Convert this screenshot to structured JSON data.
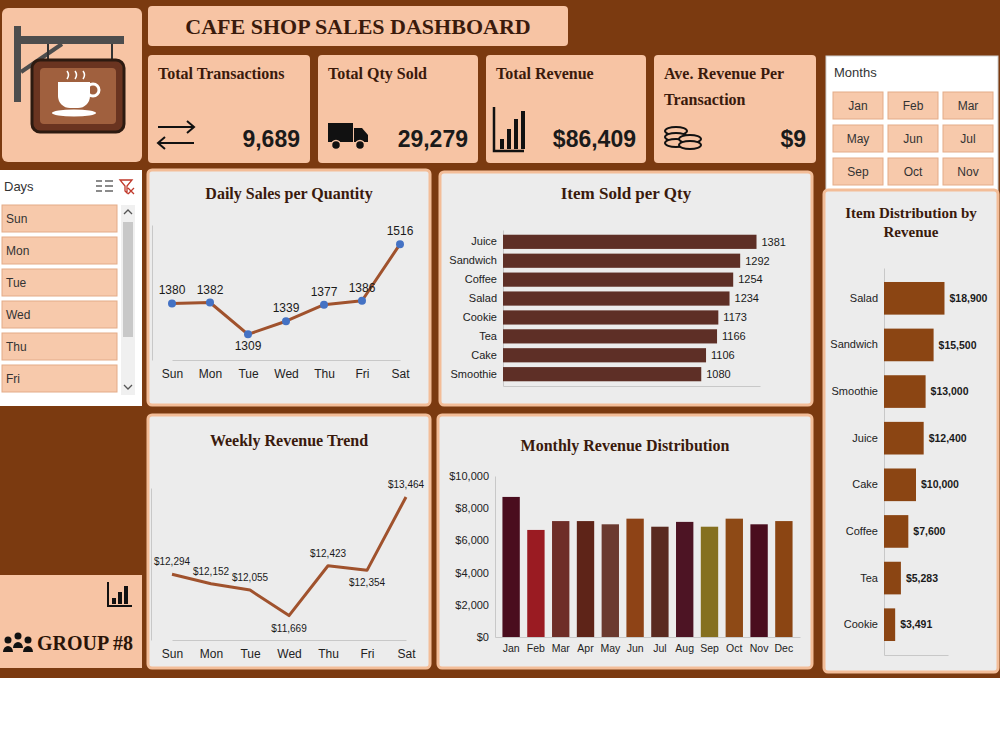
{
  "header": {
    "title": "CAFE SHOP SALES DASHBOARD"
  },
  "kpis": [
    {
      "label": "Total Transactions",
      "value": "9,689"
    },
    {
      "label": "Total Qty Sold",
      "value": "29,279"
    },
    {
      "label": "Total Revenue",
      "value": "$86,409"
    },
    {
      "label": "Ave. Revenue Per Transaction",
      "value": "$9"
    }
  ],
  "slicers": {
    "months": {
      "title": "Months",
      "items": [
        "Jan",
        "Feb",
        "Mar",
        "May",
        "Jun",
        "Jul",
        "Sep",
        "Oct",
        "Nov"
      ]
    },
    "days": {
      "title": "Days",
      "items": [
        "Sun",
        "Mon",
        "Tue",
        "Wed",
        "Thu",
        "Fri"
      ]
    }
  },
  "footer": {
    "group": "GROUP #8"
  },
  "chart_data": [
    {
      "type": "line",
      "title": "Daily Sales per Quantity",
      "categories": [
        "Sun",
        "Mon",
        "Tue",
        "Wed",
        "Thu",
        "Fri",
        "Sat"
      ],
      "values": [
        1380,
        1382,
        1309,
        1339,
        1377,
        1386,
        1516
      ],
      "color": "#a0522d",
      "marker": "circle",
      "data_labels": true,
      "tick_labels": "x",
      "ylim": [
        1250,
        1560
      ]
    },
    {
      "type": "bar",
      "orientation": "horizontal",
      "title": "Item Sold per Qty",
      "categories": [
        "Juice",
        "Sandwich",
        "Coffee",
        "Salad",
        "Cookie",
        "Tea",
        "Cake",
        "Smoothie"
      ],
      "values": [
        1381,
        1292,
        1254,
        1234,
        1173,
        1166,
        1106,
        1080
      ],
      "color": "#5e2f26",
      "data_labels": true,
      "tick_labels": "y",
      "xlim": [
        0,
        1400
      ]
    },
    {
      "type": "line",
      "title": "Weekly Revenue Trend",
      "categories": [
        "Sun",
        "Mon",
        "Tue",
        "Wed",
        "Thu",
        "Fri",
        "Sat"
      ],
      "values": [
        12294,
        12152,
        12055,
        11669,
        12423,
        12354,
        13464
      ],
      "value_labels": [
        "$12,294",
        "$12,152",
        "$12,055",
        "$11,669",
        "$12,423",
        "$12,354",
        "$13,464"
      ],
      "color": "#a0522d",
      "data_labels": true,
      "tick_labels": "x",
      "ylim": [
        11300,
        13600
      ]
    },
    {
      "type": "bar",
      "title": "Monthly Revenue Distribution",
      "categories": [
        "Jan",
        "Feb",
        "Mar",
        "Apr",
        "May",
        "Jun",
        "Jul",
        "Aug",
        "Sep",
        "Oct",
        "Nov",
        "Dec"
      ],
      "values": [
        8700,
        6650,
        7200,
        7200,
        7000,
        7350,
        6850,
        7150,
        6850,
        7350,
        7000,
        7200
      ],
      "colors": [
        "#4a0d1e",
        "#9a1b22",
        "#6e2e28",
        "#5e2418",
        "#6b3a30",
        "#8e4316",
        "#5a2a20",
        "#4d1424",
        "#857020",
        "#8e4a16",
        "#4a0d1e",
        "#8b4513"
      ],
      "ylim": [
        0,
        10000
      ],
      "yticks": [
        {
          "value": 0,
          "label": "$0"
        },
        {
          "value": 2000,
          "label": "$2,000"
        },
        {
          "value": 4000,
          "label": "$4,000"
        },
        {
          "value": 6000,
          "label": "$6,000"
        },
        {
          "value": 8000,
          "label": "$8,000"
        },
        {
          "value": 10000,
          "label": "$10,000"
        }
      ]
    },
    {
      "type": "bar",
      "orientation": "horizontal",
      "title": "Item Distribution by Revenue",
      "categories": [
        "Salad",
        "Sandwich",
        "Smoothie",
        "Juice",
        "Cake",
        "Coffee",
        "Tea",
        "Cookie"
      ],
      "values": [
        18900,
        15500,
        13000,
        12400,
        10000,
        7600,
        5283,
        3491
      ],
      "value_labels": [
        "$18,900",
        "$15,500",
        "$13,000",
        "$12,400",
        "$10,000",
        "$7,600",
        "$5,283",
        "$3,491"
      ],
      "color": "#8b4513",
      "data_labels": true,
      "tick_labels": "y",
      "xlim": [
        0,
        20000
      ]
    }
  ]
}
